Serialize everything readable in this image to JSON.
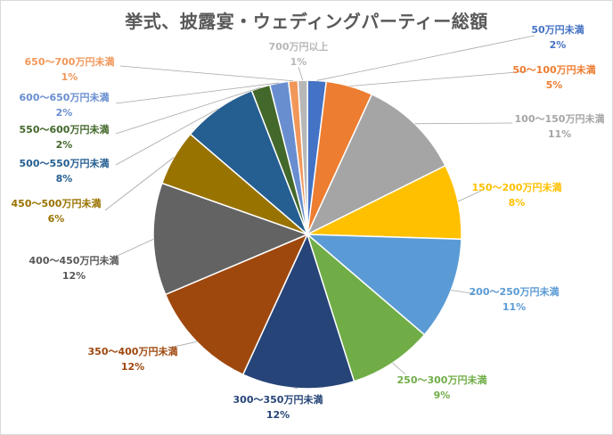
{
  "chart_data": {
    "type": "pie",
    "title": "挙式、披露宴・ウェディングパーティー総額",
    "slices": [
      {
        "label": "50万円未満",
        "value": 2,
        "value_label": "2%",
        "color": "#4472c4",
        "label_color": "#4472c4"
      },
      {
        "label": "50～100万円未満",
        "value": 5,
        "value_label": "5%",
        "color": "#ed7d31",
        "label_color": "#ed7d31"
      },
      {
        "label": "100～150万円未満",
        "value": 11,
        "value_label": "11%",
        "color": "#a5a5a5",
        "label_color": "#a5a5a5"
      },
      {
        "label": "150～200万円未満",
        "value": 8,
        "value_label": "8%",
        "color": "#ffc000",
        "label_color": "#ffc000"
      },
      {
        "label": "200～250万円未満",
        "value": 11,
        "value_label": "11%",
        "color": "#5b9bd5",
        "label_color": "#5b9bd5"
      },
      {
        "label": "250～300万円未満",
        "value": 9,
        "value_label": "9%",
        "color": "#70ad47",
        "label_color": "#70ad47"
      },
      {
        "label": "300～350万円未満",
        "value": 12,
        "value_label": "12%",
        "color": "#264478",
        "label_color": "#264478"
      },
      {
        "label": "350～400万円未満",
        "value": 12,
        "value_label": "12%",
        "color": "#9e480e",
        "label_color": "#9e480e"
      },
      {
        "label": "400～450万円未満",
        "value": 12,
        "value_label": "12%",
        "color": "#636363",
        "label_color": "#595959"
      },
      {
        "label": "450～500万円未満",
        "value": 6,
        "value_label": "6%",
        "color": "#997300",
        "label_color": "#997300"
      },
      {
        "label": "500～550万円未満",
        "value": 8,
        "value_label": "8%",
        "color": "#255e91",
        "label_color": "#255e91"
      },
      {
        "label": "550～600万円未満",
        "value": 2,
        "value_label": "2%",
        "color": "#43682b",
        "label_color": "#43682b"
      },
      {
        "label": "600～650万円未満",
        "value": 2,
        "value_label": "2%",
        "color": "#698ed0",
        "label_color": "#698ed0"
      },
      {
        "label": "650～700万円未満",
        "value": 1,
        "value_label": "1%",
        "color": "#f1975a",
        "label_color": "#f1975a"
      },
      {
        "label": "700万円以上",
        "value": 1,
        "value_label": "1%",
        "color": "#b7b7b7",
        "label_color": "#b7b7b7"
      }
    ]
  }
}
